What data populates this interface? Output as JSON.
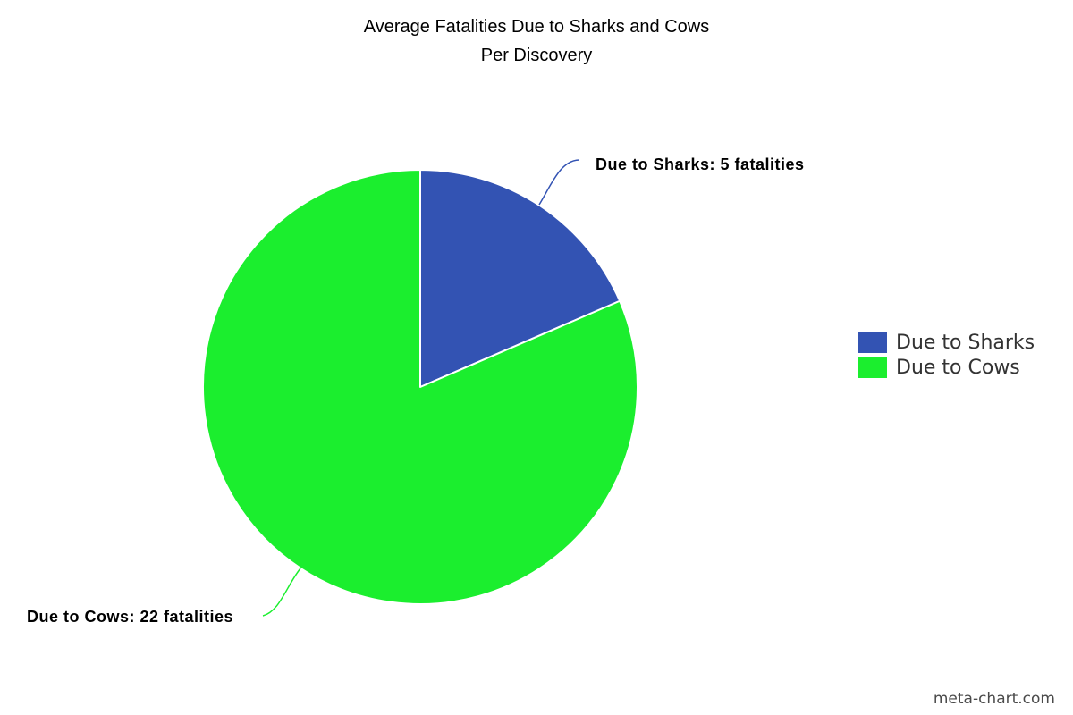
{
  "chart_data": {
    "type": "pie",
    "title": "Average Fatalities Due to Sharks and Cows",
    "subtitle": "Per Discovery",
    "slices": [
      {
        "name": "Due to Sharks",
        "value": 5,
        "color": "#3353b3",
        "label": "Due to Sharks: 5 fatalities"
      },
      {
        "name": "Due to Cows",
        "value": 22,
        "color": "#1bee2e",
        "label": "Due to Cows: 22 fatalities"
      }
    ],
    "legend_position": "right"
  },
  "watermark": "meta-chart.com"
}
